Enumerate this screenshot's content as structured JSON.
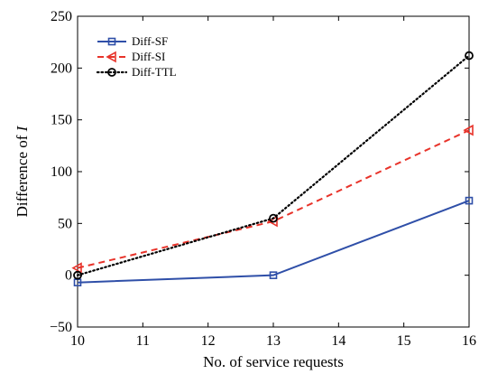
{
  "chart_data": {
    "type": "line",
    "x": [
      10,
      13,
      16
    ],
    "xlabel": "No. of service requests",
    "ylabel_prefix": "Difference of ",
    "ylabel_var": "I",
    "xlim": [
      10,
      16
    ],
    "ylim": [
      -50,
      250
    ],
    "xticks": [
      10,
      11,
      12,
      13,
      14,
      15,
      16
    ],
    "yticks": [
      -50,
      0,
      50,
      100,
      150,
      200,
      250
    ],
    "grid": false,
    "legend_position": "top-left",
    "series": [
      {
        "name": "Diff-SF",
        "values": [
          -7,
          0,
          72
        ],
        "color": "#2f4fa8",
        "line": "solid",
        "marker": "square"
      },
      {
        "name": "Diff-SI",
        "values": [
          7,
          52,
          140
        ],
        "color": "#e8332a",
        "line": "dashed",
        "marker": "triangle-left"
      },
      {
        "name": "Diff-TTL",
        "values": [
          0,
          55,
          212
        ],
        "color": "#000000",
        "line": "dotted",
        "marker": "circle"
      }
    ]
  }
}
